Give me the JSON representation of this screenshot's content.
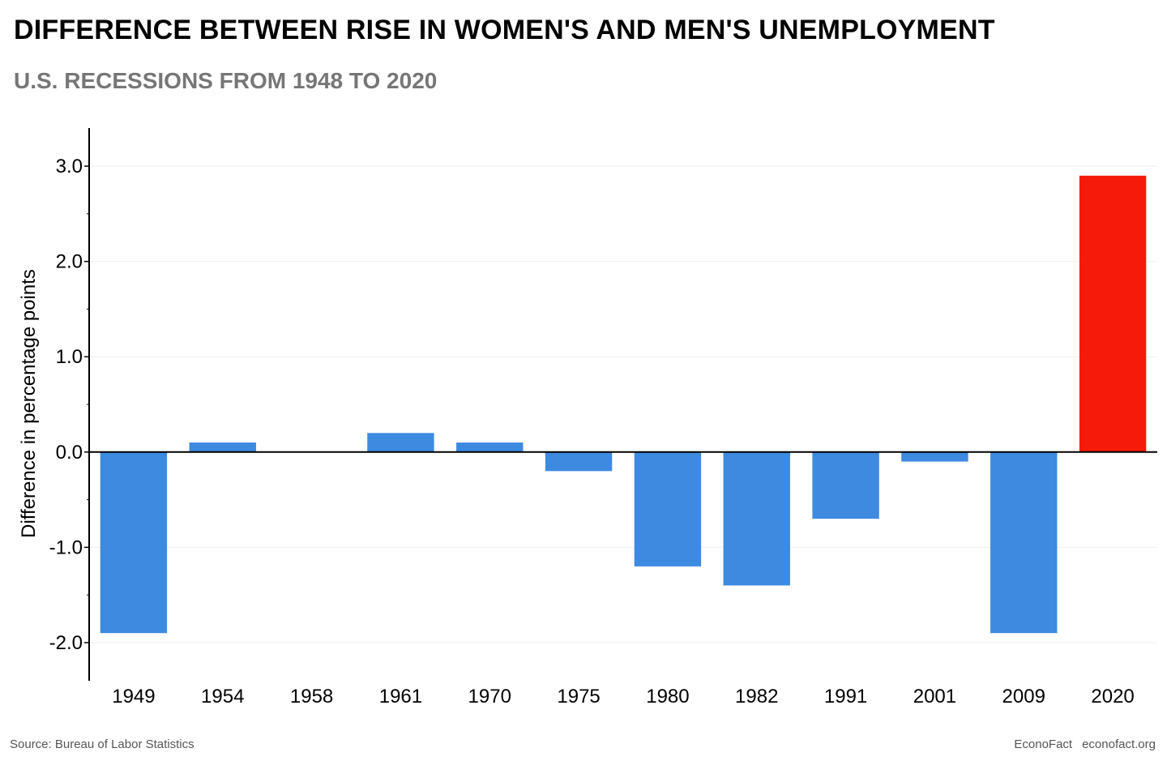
{
  "title": "DIFFERENCE BETWEEN RISE IN WOMEN'S AND MEN'S UNEMPLOYMENT",
  "subtitle": "U.S. RECESSIONS FROM 1948 TO 2020",
  "source": "Source: Bureau of Labor Statistics",
  "brand": "EconoFact",
  "website": "econofact.org",
  "colors": {
    "bar_default": "#3d8ae0",
    "bar_highlight": "#f51a0a",
    "grid": "#efefef",
    "axis": "#000000"
  },
  "chart_data": {
    "type": "bar",
    "categories": [
      "1949",
      "1954",
      "1958",
      "1961",
      "1970",
      "1975",
      "1980",
      "1982",
      "1991",
      "2001",
      "2009",
      "2020"
    ],
    "values": [
      -1.9,
      0.1,
      0.0,
      0.2,
      0.1,
      -0.2,
      -1.2,
      -1.4,
      -0.7,
      -0.1,
      -1.9,
      2.9
    ],
    "highlight": [
      "2020"
    ],
    "xlabel": "",
    "ylabel": "Difference in percentage points",
    "ylim": [
      -2.4,
      3.4
    ],
    "yticks": [
      3.0,
      2.0,
      1.0,
      0.0,
      -1.0,
      -2.0
    ],
    "ytick_labels": [
      "3.0",
      "2.0",
      "1.0",
      "0.0",
      "-1.0",
      "-2.0"
    ],
    "grid": true,
    "legend": "none"
  }
}
